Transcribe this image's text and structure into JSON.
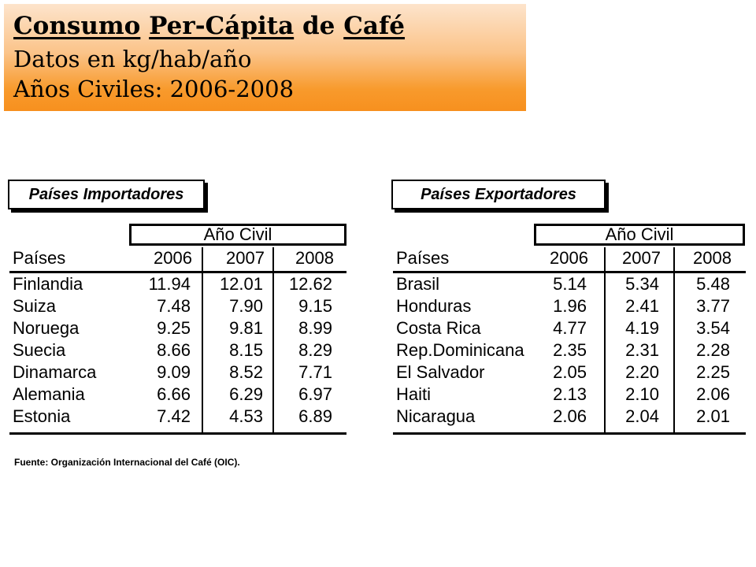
{
  "title": {
    "part1": "Consumo",
    "part2": "Per-Cápita",
    "part3": "de",
    "part4": "Café"
  },
  "subtitle1": "Datos en kg/hab/año",
  "subtitle2": "Años Civiles: 2006-2008",
  "importers": {
    "section_label": "Países Importadores",
    "year_group_label": "Año Civil",
    "headers": [
      "Países",
      "2006",
      "2007",
      "2008"
    ],
    "rows": [
      [
        "Finlandia",
        "11.94",
        "12.01",
        "12.62"
      ],
      [
        "Suiza",
        "7.48",
        "7.90",
        "9.15"
      ],
      [
        "Noruega",
        "9.25",
        "9.81",
        "8.99"
      ],
      [
        "Suecia",
        "8.66",
        "8.15",
        "8.29"
      ],
      [
        "Dinamarca",
        "9.09",
        "8.52",
        "7.71"
      ],
      [
        "Alemania",
        "6.66",
        "6.29",
        "6.97"
      ],
      [
        "Estonia",
        "7.42",
        "4.53",
        "6.89"
      ]
    ]
  },
  "exporters": {
    "section_label": "Países Exportadores",
    "year_group_label": "Año Civil",
    "headers": [
      "Países",
      "2006",
      "2007",
      "2008"
    ],
    "rows": [
      [
        "Brasil",
        "5.14",
        "5.34",
        "5.48"
      ],
      [
        "Honduras",
        "1.96",
        "2.41",
        "3.77"
      ],
      [
        "Costa Rica",
        "4.77",
        "4.19",
        "3.54"
      ],
      [
        "Rep.Dominicana",
        "2.35",
        "2.31",
        "2.28"
      ],
      [
        "El Salvador",
        "2.05",
        "2.20",
        "2.25"
      ],
      [
        "Haiti",
        "2.13",
        "2.10",
        "2.06"
      ],
      [
        "Nicaragua",
        "2.06",
        "2.04",
        "2.01"
      ]
    ]
  },
  "source_note": "Fuente: Organización Internacional del Café (OIC).",
  "colors": {
    "banner_top": "#fde4cc",
    "banner_bottom": "#f7901e"
  }
}
